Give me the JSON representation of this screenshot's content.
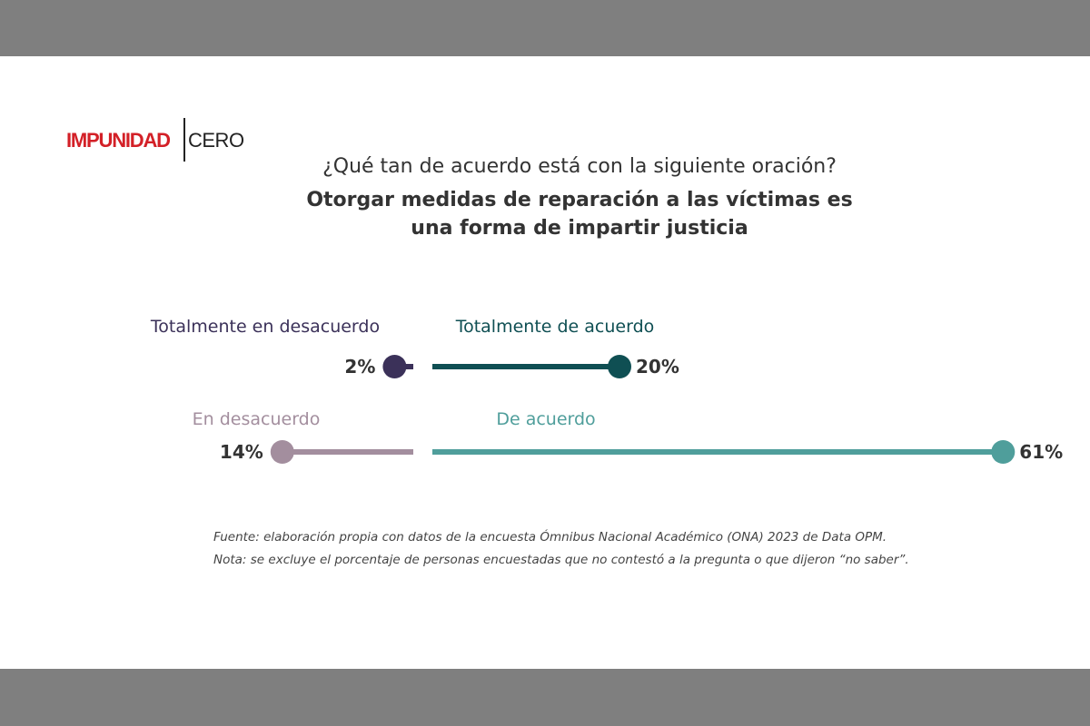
{
  "brand": {
    "logo_left": "IMPUNIDAD",
    "logo_right": "CERO",
    "logo_color": "#d32027"
  },
  "header": {
    "question": "¿Qué tan de acuerdo está con la siguiente oración?",
    "statement_line1": "Otorgar medidas de reparación a las víctimas es",
    "statement_line2": "una forma de impartir justicia"
  },
  "chart_data": {
    "type": "bar",
    "orientation": "diverging-horizontal-lollipop",
    "unit": "%",
    "series": [
      {
        "name": "Totalmente en desacuerdo",
        "value": 2,
        "value_label": "2%",
        "side": "disagree",
        "row": "top",
        "color": "#3b3159"
      },
      {
        "name": "Totalmente de acuerdo",
        "value": 20,
        "value_label": "20%",
        "side": "agree",
        "row": "top",
        "color": "#0f4f53"
      },
      {
        "name": "En desacuerdo",
        "value": 14,
        "value_label": "14%",
        "side": "disagree",
        "row": "bottom",
        "color": "#a38e9e"
      },
      {
        "name": "De acuerdo",
        "value": 61,
        "value_label": "61%",
        "side": "agree",
        "row": "bottom",
        "color": "#4f9e9b"
      }
    ]
  },
  "footer": {
    "source": "Fuente: elaboración propia con datos de la encuesta Ómnibus Nacional Académico (ONA) 2023 de Data OPM.",
    "note": "Nota: se excluye el porcentaje de personas encuestadas que no contestó a la pregunta o que dijeron “no saber”."
  }
}
